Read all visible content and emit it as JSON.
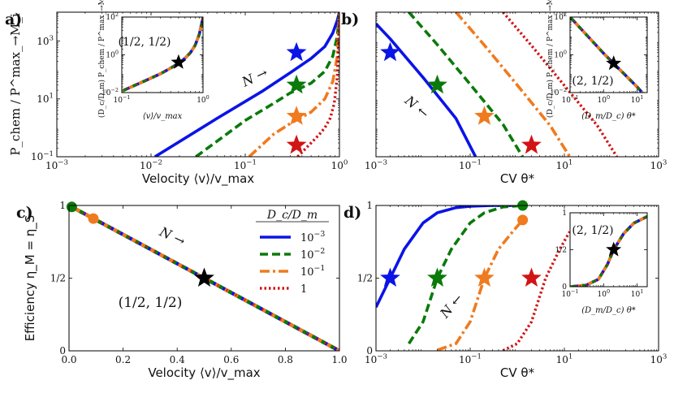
{
  "colors": {
    "series": [
      "#0a14e6",
      "#0a7a0a",
      "#f07a1e",
      "#d11414"
    ],
    "star_black": "#000000"
  },
  "chart_data": [
    {
      "id": "a",
      "type": "line",
      "panel_label": "a)",
      "xscale": "log",
      "yscale": "log",
      "xlim": [
        0.001,
        1
      ],
      "ylim": [
        0.1,
        10000
      ],
      "xlabel": "Velocity ⟨v⟩/v_max",
      "ylabel": "P_chem / P^max_→M_i",
      "x_ticks": [
        "10^-3",
        "10^-2",
        "10^-1",
        "10^0"
      ],
      "y_ticks": [
        "10^-1",
        "10^1",
        "10^3"
      ],
      "annotation": "N →",
      "series": [
        {
          "name": "10^-3",
          "x": [
            0.011,
            0.05,
            0.15,
            0.3,
            0.5,
            0.7,
            0.85,
            0.95,
            1.0
          ],
          "y": [
            0.1,
            2.1,
            18,
            80,
            250,
            650,
            1900,
            5200,
            10000
          ],
          "star": [
            0.35,
            400
          ]
        },
        {
          "name": "10^-2",
          "x": [
            0.03,
            0.1,
            0.2,
            0.3,
            0.5,
            0.7,
            0.85,
            0.95,
            1.0
          ],
          "y": [
            0.1,
            1.8,
            7,
            16,
            35,
            90,
            300,
            1500,
            10000
          ],
          "star": [
            0.35,
            30
          ]
        },
        {
          "name": "10^-1",
          "x": [
            0.11,
            0.2,
            0.3,
            0.5,
            0.7,
            0.85,
            0.95,
            1.0
          ],
          "y": [
            0.1,
            0.6,
            1.4,
            3.5,
            10,
            40,
            300,
            10000
          ],
          "star": [
            0.35,
            2.5
          ]
        },
        {
          "name": "1",
          "x": [
            0.36,
            0.5,
            0.6,
            0.7,
            0.8,
            0.88,
            0.95,
            1.0
          ],
          "y": [
            0.1,
            0.3,
            0.55,
            1.0,
            2.2,
            7,
            60,
            10000
          ],
          "star": [
            0.35,
            0.25
          ]
        }
      ],
      "inset": {
        "xscale": "log",
        "yscale": "log",
        "xlim": [
          0.1,
          1
        ],
        "ylim": [
          0.01,
          100
        ],
        "xlabel": "⟨v⟩/v_max",
        "ylabel": "(D_c/D_m) P_chem / P^max_→M_i",
        "x_ticks": [
          "10^-1",
          "10^0"
        ],
        "y_ticks": [
          "10^-2",
          "10^0",
          "10^2"
        ],
        "text": "(1/2, 1/2)",
        "curve": {
          "x": [
            0.1,
            0.2,
            0.3,
            0.4,
            0.5,
            0.6,
            0.7,
            0.8,
            0.9,
            0.95,
            1.0
          ],
          "y": [
            0.012,
            0.045,
            0.1,
            0.2,
            0.35,
            0.65,
            1.3,
            3.2,
            12,
            35,
            100
          ]
        },
        "star": [
          0.5,
          0.4
        ]
      }
    },
    {
      "id": "b",
      "type": "line",
      "panel_label": "b)",
      "xscale": "log",
      "yscale": "log",
      "xlim": [
        0.001,
        1000
      ],
      "ylim": [
        0.1,
        10000
      ],
      "xlabel": "CV θ*",
      "x_ticks": [
        "10^-3",
        "10^-1",
        "10^1",
        "10^3"
      ],
      "annotation": "N ←",
      "series": [
        {
          "name": "10^-3",
          "x": [
            0.001,
            0.002,
            0.01,
            0.05,
            0.13
          ],
          "y": [
            4000,
            1200,
            55,
            2.1,
            0.1
          ],
          "star": [
            0.002,
            400
          ]
        },
        {
          "name": "10^-2",
          "x": [
            0.005,
            0.02,
            0.1,
            0.5,
            1.3
          ],
          "y": [
            10000,
            750,
            32,
            1.3,
            0.1
          ],
          "star": [
            0.02,
            30
          ]
        },
        {
          "name": "10^-1",
          "x": [
            0.05,
            0.2,
            1,
            5,
            13
          ],
          "y": [
            10000,
            720,
            30,
            1.2,
            0.1
          ],
          "star": [
            0.2,
            2.5
          ]
        },
        {
          "name": "1",
          "x": [
            0.5,
            2,
            10,
            50,
            130
          ],
          "y": [
            10000,
            700,
            29,
            1.2,
            0.1
          ],
          "star": [
            2,
            0.25
          ]
        }
      ],
      "inset": {
        "xscale": "log",
        "yscale": "log",
        "xlim": [
          0.1,
          20
        ],
        "ylim": [
          0.01,
          100
        ],
        "xlabel": "(D_m/D_c) θ*",
        "ylabel": "(D_c/D_m) P_chem / P^max_→M_i",
        "x_ticks": [
          "10^-1",
          "10^0",
          "10^1"
        ],
        "y_ticks": [
          "10^-2",
          "10^0",
          "10^2"
        ],
        "text": "(2, 1/2)",
        "curve": {
          "x": [
            0.1,
            1,
            2,
            10,
            20
          ],
          "y": [
            100,
            1.2,
            0.35,
            0.02,
            0.005
          ]
        },
        "star": [
          2,
          0.35
        ]
      }
    },
    {
      "id": "c",
      "type": "line",
      "panel_label": "c)",
      "xscale": "linear",
      "yscale": "linear",
      "xlim": [
        0,
        1
      ],
      "ylim": [
        0,
        1
      ],
      "xlabel": "Velocity ⟨v⟩/v_max",
      "ylabel": "Efficiency η_M = η_S",
      "x_ticks": [
        "0.0",
        "0.2",
        "0.4",
        "0.6",
        "0.8",
        "1.0"
      ],
      "y_ticks": [
        "0",
        "1/2",
        "1"
      ],
      "annotation": "N →",
      "text": "(1/2, 1/2)",
      "curve": {
        "x": [
          0,
          1
        ],
        "y": [
          1,
          0
        ]
      },
      "dots": [
        [
          0.01,
          0.99
        ],
        [
          0.09,
          0.91
        ]
      ],
      "star": [
        0.5,
        0.5
      ],
      "legend": {
        "title": "D_c/D_m",
        "entries": [
          "10^-3",
          "10^-2",
          "10^-1",
          "1"
        ]
      }
    },
    {
      "id": "d",
      "type": "line",
      "panel_label": "d)",
      "xscale": "log",
      "yscale": "linear",
      "xlim": [
        0.001,
        1000
      ],
      "ylim": [
        0,
        1
      ],
      "xlabel": "CV θ*",
      "x_ticks": [
        "10^-3",
        "10^-1",
        "10^1",
        "10^3"
      ],
      "y_ticks": [
        "0",
        "1/2",
        "1"
      ],
      "annotation": "N ←",
      "series": [
        {
          "name": "10^-3",
          "x": [
            0.001,
            0.002,
            0.004,
            0.01,
            0.02,
            0.05,
            0.1,
            0.3,
            1.3
          ],
          "y": [
            0.3,
            0.5,
            0.7,
            0.88,
            0.95,
            0.985,
            0.995,
            1.0,
            1.0
          ],
          "star": [
            0.002,
            0.5
          ]
        },
        {
          "name": "10^-2",
          "x": [
            0.005,
            0.01,
            0.02,
            0.04,
            0.1,
            0.2,
            0.5,
            1.3
          ],
          "y": [
            0.05,
            0.2,
            0.5,
            0.7,
            0.88,
            0.95,
            0.99,
            1.0
          ],
          "star": [
            0.02,
            0.5
          ]
        },
        {
          "name": "10^-1",
          "x": [
            0.02,
            0.05,
            0.1,
            0.2,
            0.4,
            0.8,
            1.3
          ],
          "y": [
            0.005,
            0.05,
            0.2,
            0.5,
            0.7,
            0.82,
            0.9
          ],
          "star": [
            0.2,
            0.5
          ]
        },
        {
          "name": "1",
          "x": [
            0.5,
            1,
            2,
            4,
            8,
            13
          ],
          "y": [
            0.002,
            0.05,
            0.2,
            0.5,
            0.7,
            0.82
          ],
          "star": [
            2,
            0.5
          ]
        }
      ],
      "end_dots": [
        [
          1.3,
          1.0
        ],
        [
          1.3,
          0.9
        ]
      ],
      "inset": {
        "xscale": "log",
        "yscale": "linear",
        "xlim": [
          0.1,
          20
        ],
        "ylim": [
          0,
          1
        ],
        "xlabel": "(D_m/D_c) θ*",
        "x_ticks": [
          "10^-1",
          "10^0",
          "10^1"
        ],
        "y_ticks": [
          "0",
          "1/2",
          "1"
        ],
        "text": "(2, 1/2)",
        "curve": {
          "x": [
            0.1,
            0.3,
            0.7,
            1.3,
            2,
            4,
            8,
            20
          ],
          "y": [
            0.0,
            0.02,
            0.1,
            0.3,
            0.5,
            0.72,
            0.86,
            0.95
          ]
        },
        "star": [
          2,
          0.5
        ]
      }
    }
  ]
}
